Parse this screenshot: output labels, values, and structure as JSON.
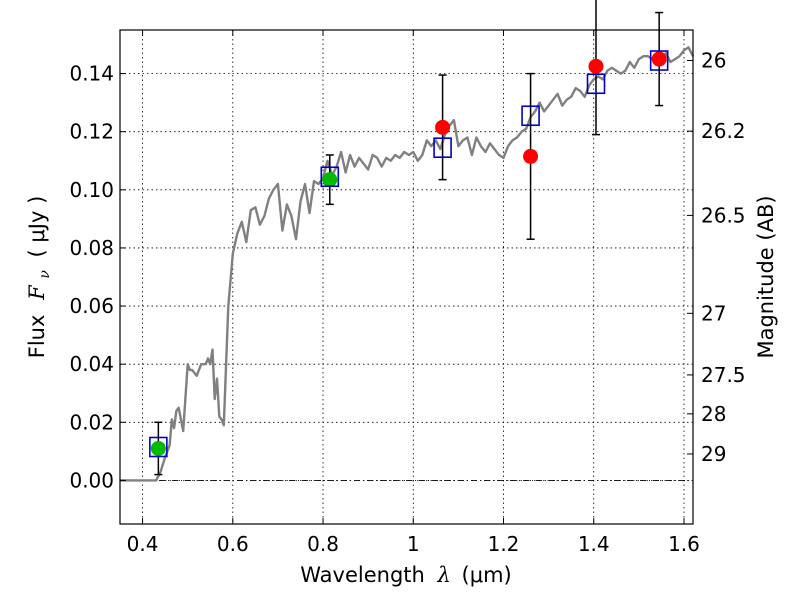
{
  "chart_data": {
    "type": "scatter",
    "xlabel_prefix": "Wavelength",
    "xlabel_symbol": "λ",
    "xlabel_unit": "(μm)",
    "ylabel_prefix": "Flux",
    "ylabel_symbol": "F",
    "ylabel_subscript": "ν",
    "ylabel_unit": "( μJy )",
    "y2label": "Magnitude (AB)",
    "xlim": [
      0.35,
      1.62
    ],
    "ylim": [
      -0.015,
      0.155
    ],
    "grid": true,
    "x_ticks": [
      0.4,
      0.6,
      0.8,
      1.0,
      1.2,
      1.4,
      1.6
    ],
    "x_tick_labels": [
      "0.4",
      "0.6",
      "0.8",
      "1",
      "1.2",
      "1.4",
      "1.6"
    ],
    "y_ticks": [
      0.0,
      0.02,
      0.04,
      0.06,
      0.08,
      0.1,
      0.12,
      0.14
    ],
    "y_tick_labels": [
      "0.00",
      "0.02",
      "0.04",
      "0.06",
      "0.08",
      "0.10",
      "0.12",
      "0.14"
    ],
    "y2_ticks": [
      {
        "label": "26",
        "flux": 0.1445
      },
      {
        "label": "26.2",
        "flux": 0.1202
      },
      {
        "label": "26.5",
        "flux": 0.0912
      },
      {
        "label": "27",
        "flux": 0.0575
      },
      {
        "label": "27.5",
        "flux": 0.0363
      },
      {
        "label": "28",
        "flux": 0.0229
      },
      {
        "label": "29",
        "flux": 0.0091
      }
    ],
    "series": [
      {
        "kind": "line",
        "color": "#808080",
        "x": [
          0.35,
          0.4,
          0.43,
          0.44,
          0.45,
          0.46,
          0.465,
          0.47,
          0.475,
          0.48,
          0.49,
          0.5,
          0.505,
          0.51,
          0.52,
          0.53,
          0.54,
          0.545,
          0.55,
          0.555,
          0.56,
          0.565,
          0.57,
          0.575,
          0.58,
          0.59,
          0.6,
          0.61,
          0.62,
          0.63,
          0.64,
          0.65,
          0.66,
          0.67,
          0.68,
          0.69,
          0.7,
          0.71,
          0.72,
          0.73,
          0.74,
          0.75,
          0.76,
          0.77,
          0.78,
          0.79,
          0.8,
          0.81,
          0.82,
          0.83,
          0.84,
          0.85,
          0.86,
          0.87,
          0.88,
          0.89,
          0.9,
          0.91,
          0.92,
          0.93,
          0.94,
          0.95,
          0.96,
          0.97,
          0.98,
          0.99,
          1.0,
          1.01,
          1.02,
          1.03,
          1.04,
          1.05,
          1.06,
          1.07,
          1.08,
          1.09,
          1.1,
          1.11,
          1.12,
          1.13,
          1.14,
          1.15,
          1.16,
          1.17,
          1.18,
          1.19,
          1.2,
          1.21,
          1.22,
          1.23,
          1.24,
          1.25,
          1.26,
          1.27,
          1.28,
          1.29,
          1.3,
          1.31,
          1.32,
          1.33,
          1.34,
          1.35,
          1.36,
          1.37,
          1.38,
          1.39,
          1.4,
          1.41,
          1.42,
          1.43,
          1.44,
          1.45,
          1.46,
          1.47,
          1.48,
          1.49,
          1.5,
          1.51,
          1.52,
          1.53,
          1.54,
          1.55,
          1.56,
          1.57,
          1.58,
          1.59,
          1.6,
          1.61,
          1.62
        ],
        "y": [
          0.0,
          0.0,
          0.0,
          0.003,
          0.008,
          0.012,
          0.021,
          0.018,
          0.024,
          0.025,
          0.017,
          0.04,
          0.038,
          0.038,
          0.036,
          0.04,
          0.04,
          0.042,
          0.04,
          0.045,
          0.028,
          0.035,
          0.022,
          0.021,
          0.019,
          0.06,
          0.078,
          0.085,
          0.089,
          0.082,
          0.093,
          0.094,
          0.088,
          0.091,
          0.097,
          0.1,
          0.102,
          0.086,
          0.095,
          0.091,
          0.083,
          0.096,
          0.102,
          0.092,
          0.103,
          0.102,
          0.104,
          0.11,
          0.105,
          0.108,
          0.113,
          0.106,
          0.112,
          0.108,
          0.111,
          0.109,
          0.107,
          0.112,
          0.111,
          0.108,
          0.111,
          0.11,
          0.112,
          0.111,
          0.113,
          0.112,
          0.113,
          0.11,
          0.112,
          0.117,
          0.115,
          0.117,
          0.114,
          0.119,
          0.122,
          0.124,
          0.115,
          0.117,
          0.118,
          0.112,
          0.118,
          0.115,
          0.113,
          0.116,
          0.114,
          0.112,
          0.111,
          0.115,
          0.117,
          0.118,
          0.12,
          0.121,
          0.125,
          0.127,
          0.13,
          0.127,
          0.129,
          0.131,
          0.133,
          0.129,
          0.131,
          0.132,
          0.135,
          0.134,
          0.132,
          0.136,
          0.138,
          0.139,
          0.138,
          0.141,
          0.142,
          0.141,
          0.14,
          0.141,
          0.144,
          0.142,
          0.145,
          0.146,
          0.146,
          0.145,
          0.143,
          0.146,
          0.147,
          0.144,
          0.145,
          0.146,
          0.148,
          0.149,
          0.146
        ]
      },
      {
        "kind": "points",
        "marker": "circle",
        "color": "#00bb00",
        "x": [
          0.435,
          0.815
        ],
        "y": [
          0.011,
          0.1035
        ],
        "yerr": [
          0.009,
          0.0085
        ]
      },
      {
        "kind": "points",
        "marker": "circle",
        "color": "#ff0000",
        "x": [
          1.065,
          1.26,
          1.405,
          1.545
        ],
        "y": [
          0.1215,
          0.1115,
          0.1425,
          0.145
        ],
        "yerr": [
          0.018,
          0.0285,
          0.0235,
          0.016
        ]
      },
      {
        "kind": "points",
        "marker": "open-square",
        "color": "#0000cc",
        "x": [
          0.435,
          0.815,
          1.065,
          1.26,
          1.405,
          1.545
        ],
        "y": [
          0.0115,
          0.1045,
          0.1145,
          0.1255,
          0.1365,
          0.1445
        ]
      }
    ]
  }
}
